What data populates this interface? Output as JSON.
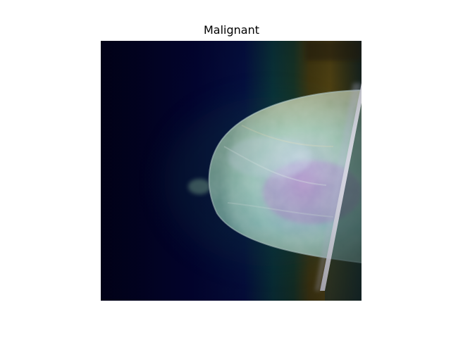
{
  "figure": {
    "title": "Malignant"
  },
  "image": {
    "content": "mammogram-with-heatmap-overlay",
    "colormap": "viridis-overlay",
    "colors": {
      "background": "#01021c",
      "heat_low": "#03033a",
      "heat_mid": "#0c3a3e",
      "heat_high": "#5a4a12",
      "tissue": "#9ed8d2",
      "tissue_dense": "#b49ad6",
      "tissue_edge": "#d8c88a",
      "pectoral_line": "#f4f4ff"
    }
  }
}
